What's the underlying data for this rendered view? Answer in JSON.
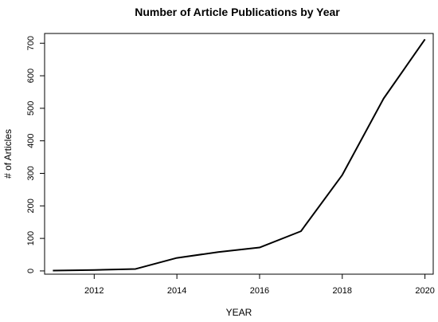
{
  "chart_data": {
    "type": "line",
    "title": "Number of Article Publications by Year",
    "xlabel": "YEAR",
    "ylabel": "# of Articles",
    "xlim": [
      2010.8,
      2020.2
    ],
    "ylim": [
      -10,
      730
    ],
    "x_ticks": [
      2012,
      2014,
      2016,
      2018,
      2020
    ],
    "y_ticks": [
      0,
      100,
      200,
      300,
      400,
      500,
      600,
      700
    ],
    "grid": false,
    "legend": "none",
    "series": [
      {
        "x": [
          2011,
          2012,
          2013,
          2014,
          2015,
          2016,
          2017,
          2018,
          2019,
          2020
        ],
        "y": [
          1,
          3,
          6,
          40,
          58,
          72,
          122,
          295,
          530,
          712
        ]
      }
    ]
  }
}
